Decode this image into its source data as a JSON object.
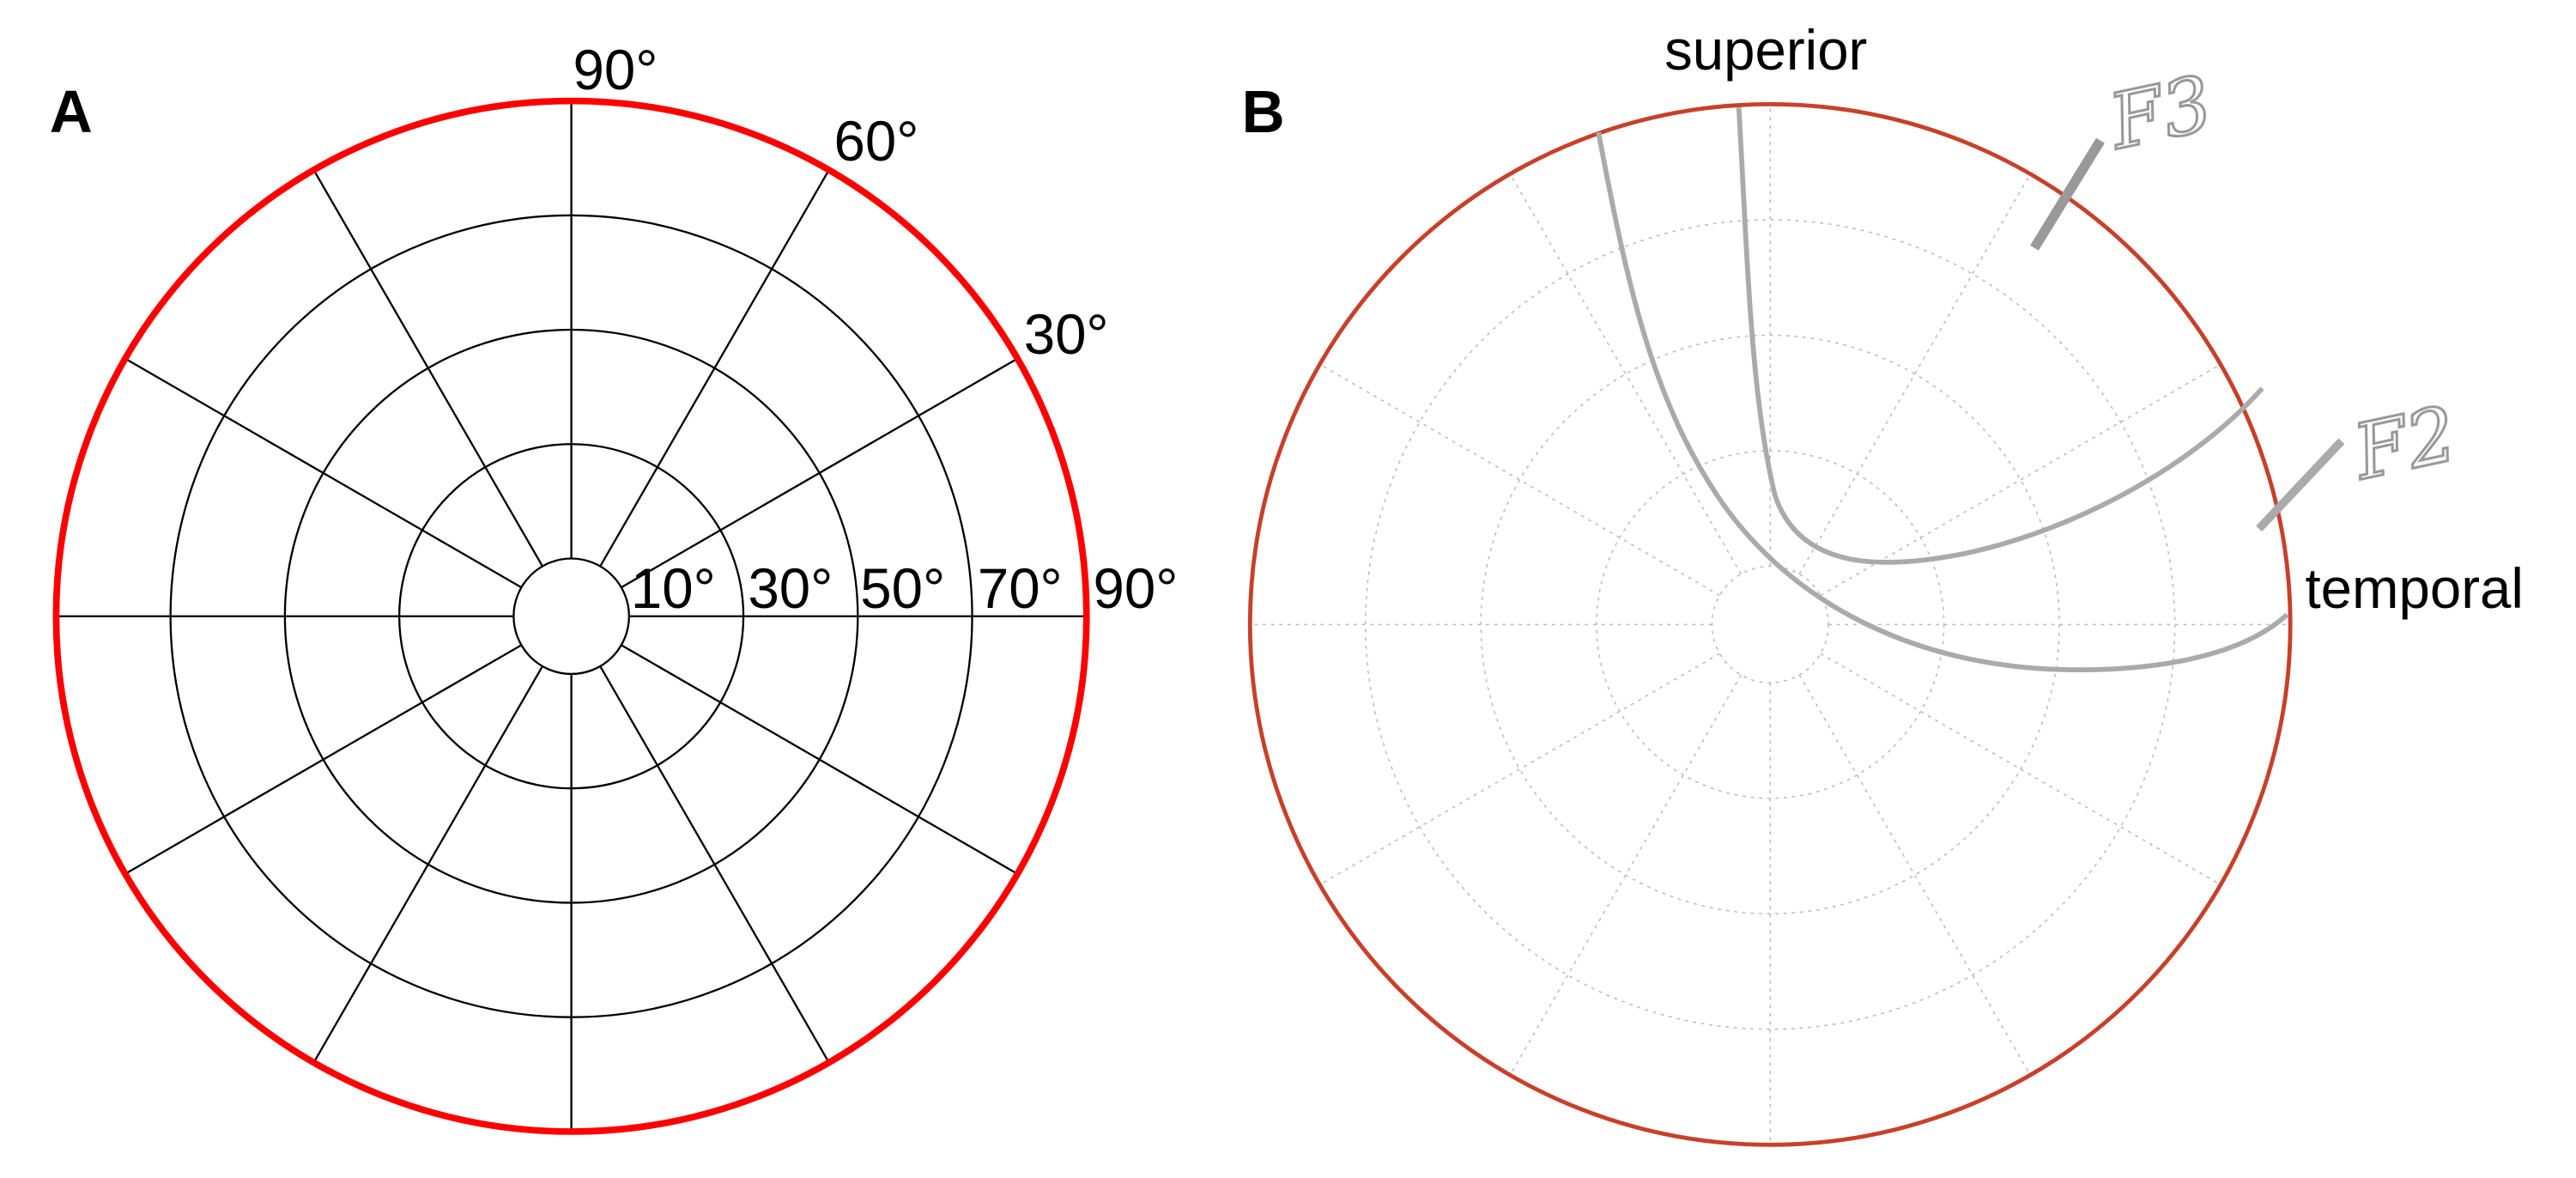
{
  "panels": [
    {
      "label": "A",
      "angle_labels": [
        "90°",
        "60°",
        "30°"
      ],
      "ring_labels": [
        "10°",
        "30°",
        "50°",
        "70°",
        "90°"
      ]
    },
    {
      "label": "B",
      "superior": "superior",
      "temporal": "temporal",
      "annotations": [
        "F3",
        "F2"
      ]
    }
  ]
}
